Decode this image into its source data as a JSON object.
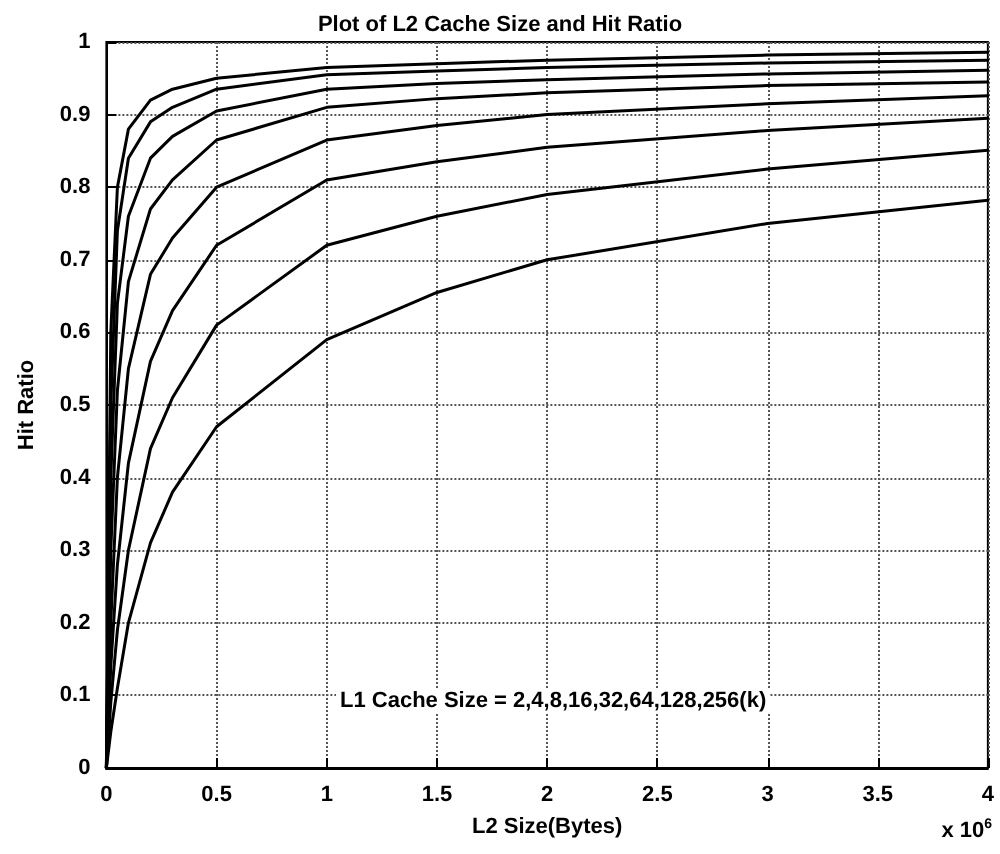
{
  "chart_data": {
    "type": "line",
    "title": "Plot of L2 Cache Size and Hit Ratio",
    "xlabel": "L2 Size(Bytes)",
    "ylabel": "Hit Ratio",
    "annotations": [
      "L1 Cache Size = 2,4,8,16,32,64,128,256(k)",
      "x 10$^{6}$"
    ],
    "x": [
      0,
      0.02,
      0.05,
      0.1,
      0.2,
      0.3,
      0.5,
      1,
      1.5,
      2,
      3,
      4
    ],
    "series": [
      {
        "color": "#000000",
        "values": [
          0,
          0.6,
          0.8,
          0.88,
          0.92,
          0.935,
          0.95,
          0.965,
          0.97,
          0.975,
          0.982,
          0.986
        ]
      },
      {
        "color": "#000000",
        "values": [
          0,
          0.5,
          0.74,
          0.84,
          0.89,
          0.91,
          0.935,
          0.955,
          0.96,
          0.965,
          0.971,
          0.975
        ]
      },
      {
        "color": "#000000",
        "values": [
          0,
          0.4,
          0.64,
          0.76,
          0.84,
          0.87,
          0.905,
          0.935,
          0.943,
          0.948,
          0.956,
          0.961
        ]
      },
      {
        "color": "#000000",
        "values": [
          0,
          0.3,
          0.52,
          0.67,
          0.77,
          0.81,
          0.865,
          0.91,
          0.922,
          0.93,
          0.94,
          0.945
        ]
      },
      {
        "color": "#000000",
        "values": [
          0,
          0.2,
          0.4,
          0.55,
          0.68,
          0.73,
          0.8,
          0.865,
          0.885,
          0.9,
          0.915,
          0.926
        ]
      },
      {
        "color": "#000000",
        "values": [
          0,
          0.14,
          0.28,
          0.42,
          0.56,
          0.63,
          0.72,
          0.81,
          0.835,
          0.855,
          0.878,
          0.895
        ]
      },
      {
        "color": "#000000",
        "values": [
          0,
          0.09,
          0.19,
          0.3,
          0.44,
          0.51,
          0.61,
          0.72,
          0.76,
          0.79,
          0.825,
          0.851
        ]
      },
      {
        "color": "#000000",
        "values": [
          0,
          0.05,
          0.11,
          0.2,
          0.31,
          0.38,
          0.47,
          0.59,
          0.655,
          0.7,
          0.75,
          0.782
        ]
      }
    ],
    "xlim": [
      0,
      4
    ],
    "xticks": [
      0,
      0.5,
      1,
      1.5,
      2,
      2.5,
      3,
      3.5,
      4
    ],
    "ylim": [
      0,
      1
    ],
    "yticks": [
      0,
      0.1,
      0.2,
      0.3,
      0.4,
      0.5,
      0.6,
      0.7,
      0.8,
      0.9,
      1
    ],
    "grid": true,
    "marker": "none",
    "line_style": "solid"
  }
}
